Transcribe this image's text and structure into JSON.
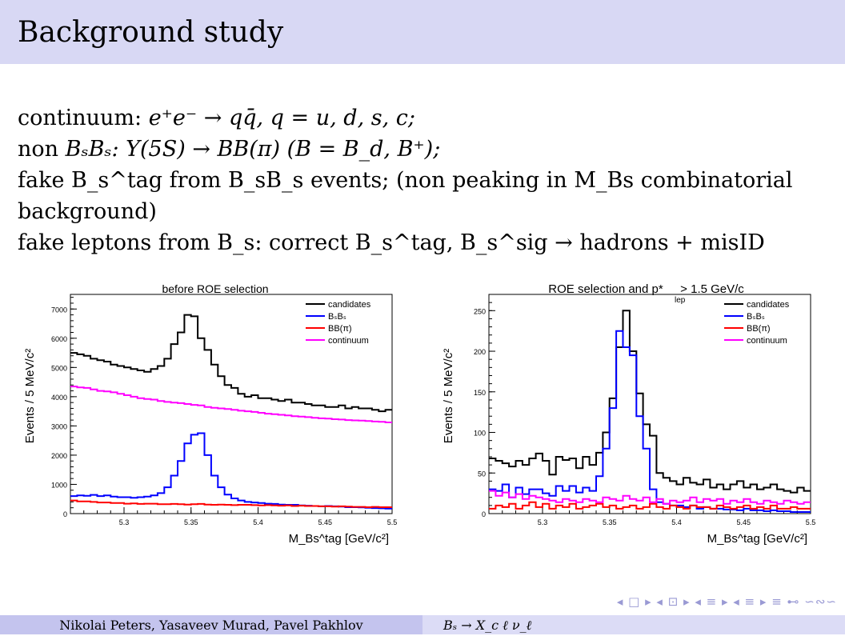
{
  "slide": {
    "title": "Background study",
    "bullets": {
      "b1_pre": "continuum: ",
      "b1_math": "e⁺e⁻ → qq̄, q = u, d, s, c;",
      "b2_pre": "non ",
      "b2_math": "BₛBₛ: Υ(5S) → BB(π) (B = B_d, B⁺);",
      "b3": "fake B_s^tag from B_sB_s events; (non peaking in M_Bs combinatorial background)",
      "b4": "fake leptons from B_s: correct B_s^tag, B_s^sig → hadrons + misID"
    }
  },
  "chart_data": [
    {
      "type": "line",
      "title": "before ROE selection",
      "xlabel": "M_Bs^tag [GeV/c²]",
      "ylabel": "Events / 5 MeV/c²",
      "xlim": [
        5.26,
        5.5
      ],
      "ylim": [
        0,
        7500
      ],
      "xticks": [
        "5.3",
        "5.35",
        "5.4",
        "5.45",
        "5.5"
      ],
      "yticks": [
        "0",
        "1000",
        "2000",
        "3000",
        "4000",
        "5000",
        "6000",
        "7000"
      ],
      "legend_position": "top-right",
      "bin_width": 0.005,
      "series": [
        {
          "name": "candidates",
          "color": "#000000",
          "values": [
            5500,
            5450,
            5400,
            5300,
            5250,
            5200,
            5100,
            5050,
            5000,
            4950,
            4900,
            4850,
            4950,
            5050,
            5300,
            5800,
            6200,
            6800,
            6750,
            6000,
            5600,
            5100,
            4700,
            4400,
            4300,
            4100,
            4000,
            4050,
            3950,
            3950,
            3900,
            3850,
            3900,
            3800,
            3800,
            3750,
            3700,
            3700,
            3650,
            3650,
            3700,
            3600,
            3650,
            3600,
            3600,
            3550,
            3500,
            3550
          ]
        },
        {
          "name": "BₛBₛ",
          "color": "#0000ff",
          "values": [
            600,
            620,
            610,
            640,
            600,
            620,
            580,
            560,
            560,
            540,
            560,
            580,
            620,
            700,
            900,
            1300,
            1800,
            2400,
            2700,
            2750,
            2000,
            1300,
            900,
            650,
            520,
            450,
            400,
            380,
            360,
            340,
            330,
            310,
            300,
            300,
            280,
            270,
            260,
            250,
            260,
            250,
            240,
            220,
            220,
            210,
            200,
            190,
            180,
            170
          ]
        },
        {
          "name": "BB(π)",
          "color": "#ff0000",
          "values": [
            450,
            420,
            420,
            400,
            380,
            380,
            360,
            360,
            340,
            350,
            330,
            340,
            340,
            320,
            320,
            330,
            320,
            310,
            320,
            330,
            310,
            300,
            310,
            300,
            290,
            300,
            300,
            290,
            280,
            290,
            280,
            270,
            280,
            260,
            270,
            260,
            260,
            250,
            250,
            240,
            250,
            240,
            230,
            230,
            220,
            230,
            220,
            220
          ]
        },
        {
          "name": "continuum",
          "color": "#ff00ff",
          "values": [
            4350,
            4320,
            4300,
            4250,
            4200,
            4180,
            4150,
            4100,
            4050,
            4000,
            3950,
            3920,
            3900,
            3850,
            3820,
            3800,
            3780,
            3750,
            3720,
            3700,
            3650,
            3620,
            3600,
            3580,
            3550,
            3520,
            3500,
            3480,
            3450,
            3420,
            3400,
            3380,
            3360,
            3330,
            3320,
            3300,
            3280,
            3260,
            3250,
            3230,
            3220,
            3200,
            3190,
            3180,
            3170,
            3150,
            3140,
            3120
          ]
        }
      ]
    },
    {
      "type": "line",
      "title": "ROE selection and p*_lep > 1.5 GeV/c",
      "title_main": "ROE selection and p*",
      "title_sub": "lep",
      "title_tail": " > 1.5 GeV/c",
      "xlabel": "M_Bs^tag [GeV/c²]",
      "ylabel": "Events / 5 MeV/c²",
      "xlim": [
        5.26,
        5.5
      ],
      "ylim": [
        0,
        270
      ],
      "xticks": [
        "5.3",
        "5.35",
        "5.4",
        "5.45",
        "5.5"
      ],
      "yticks": [
        "0",
        "50",
        "100",
        "150",
        "200",
        "250"
      ],
      "legend_position": "top-right",
      "bin_width": 0.005,
      "series": [
        {
          "name": "candidates",
          "color": "#000000",
          "values": [
            68,
            65,
            62,
            58,
            65,
            60,
            68,
            74,
            65,
            48,
            70,
            66,
            68,
            56,
            70,
            60,
            75,
            100,
            142,
            205,
            250,
            200,
            148,
            110,
            96,
            50,
            44,
            40,
            36,
            44,
            38,
            36,
            42,
            32,
            36,
            30,
            36,
            40,
            32,
            36,
            30,
            32,
            36,
            30,
            28,
            26,
            32,
            28
          ]
        },
        {
          "name": "BₛBₛ",
          "color": "#0000ff",
          "values": [
            30,
            28,
            36,
            20,
            32,
            24,
            30,
            30,
            25,
            22,
            34,
            28,
            34,
            26,
            32,
            28,
            46,
            80,
            130,
            225,
            205,
            195,
            120,
            80,
            30,
            14,
            12,
            10,
            10,
            8,
            10,
            6,
            8,
            6,
            6,
            5,
            5,
            4,
            6,
            4,
            4,
            3,
            4,
            3,
            3,
            2,
            2,
            2
          ]
        },
        {
          "name": "BB(π)",
          "color": "#ff0000",
          "values": [
            6,
            10,
            8,
            12,
            6,
            10,
            14,
            8,
            12,
            6,
            10,
            8,
            12,
            6,
            8,
            10,
            12,
            8,
            10,
            6,
            8,
            10,
            6,
            8,
            12,
            8,
            6,
            10,
            8,
            6,
            10,
            8,
            8,
            6,
            10,
            8,
            6,
            8,
            10,
            6,
            8,
            6,
            10,
            6,
            6,
            8,
            6,
            6
          ]
        },
        {
          "name": "continuum",
          "color": "#ff00ff",
          "values": [
            28,
            22,
            26,
            20,
            24,
            18,
            22,
            20,
            18,
            16,
            14,
            18,
            16,
            14,
            18,
            16,
            14,
            20,
            18,
            16,
            22,
            18,
            16,
            20,
            14,
            18,
            12,
            16,
            14,
            16,
            20,
            14,
            18,
            16,
            18,
            12,
            16,
            14,
            18,
            14,
            12,
            16,
            14,
            12,
            16,
            14,
            12,
            14
          ]
        }
      ]
    }
  ],
  "nav": {
    "symbols": "◂ □ ▸ ◂ ⊡ ▸ ◂ ≡ ▸ ◂ ≡ ▸ ≡ ⊷ ∽∾∽"
  },
  "footer": {
    "authors": "Nikolai Peters, Yasaveev Murad, Pavel Pakhlov",
    "topic": "Bₛ → X_c ℓ ν_ℓ"
  }
}
